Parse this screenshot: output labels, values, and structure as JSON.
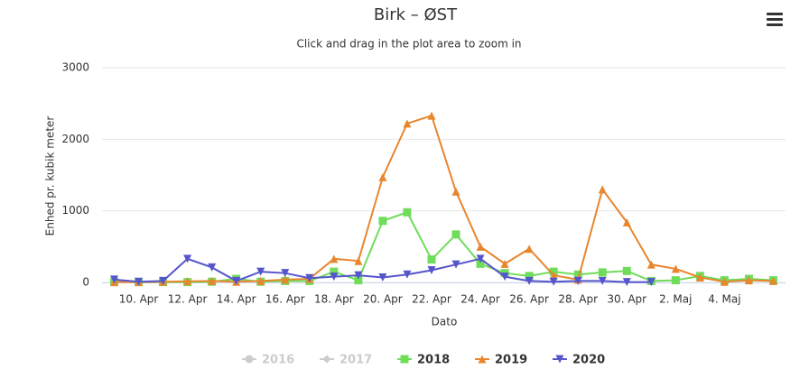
{
  "chart_data": {
    "type": "line",
    "title": "Birk – ØST",
    "subtitle": "Click and drag in the plot area to zoom in",
    "xlabel": "Dato",
    "ylabel": "Enhed pr. kubik meter",
    "categories": [
      null,
      "10. Apr",
      null,
      "12. Apr",
      null,
      "14. Apr",
      null,
      "16. Apr",
      null,
      "18. Apr",
      null,
      "20. Apr",
      null,
      "22. Apr",
      null,
      "24. Apr",
      null,
      "26. Apr",
      null,
      "28. Apr",
      null,
      "30. Apr",
      null,
      "2. Maj",
      null,
      "4. Maj",
      null,
      null
    ],
    "ylim": [
      0,
      3000
    ],
    "yticks": [
      0,
      1000,
      2000,
      3000
    ],
    "grid": true,
    "legend": "bottom",
    "series": [
      {
        "name": "2016",
        "color": "#cccccc",
        "marker": "circle",
        "visible": false,
        "values": [
          null,
          null,
          null,
          null,
          null,
          null,
          null,
          null,
          null,
          null,
          null,
          null,
          null,
          null,
          null,
          null,
          null,
          null,
          null,
          null,
          null,
          null,
          null,
          null,
          null,
          null,
          null,
          null
        ]
      },
      {
        "name": "2017",
        "color": "#cccccc",
        "marker": "diamond",
        "visible": false,
        "values": [
          null,
          null,
          null,
          null,
          null,
          null,
          null,
          null,
          null,
          null,
          null,
          null,
          null,
          null,
          null,
          null,
          null,
          null,
          null,
          null,
          null,
          null,
          null,
          null,
          null,
          null,
          null,
          null
        ]
      },
      {
        "name": "2018",
        "color": "#6fdc5a",
        "marker": "square",
        "visible": true,
        "values": [
          10,
          5,
          5,
          5,
          10,
          50,
          10,
          20,
          20,
          150,
          30,
          860,
          980,
          320,
          670,
          260,
          130,
          90,
          150,
          110,
          140,
          160,
          20,
          30,
          90,
          30,
          50,
          30
        ]
      },
      {
        "name": "2019",
        "color": "#e8862e",
        "marker": "triangle",
        "visible": true,
        "values": [
          5,
          5,
          10,
          15,
          20,
          10,
          20,
          40,
          50,
          330,
          300,
          1470,
          2220,
          2330,
          1270,
          500,
          260,
          470,
          100,
          40,
          1300,
          840,
          250,
          190,
          70,
          10,
          30,
          20
        ]
      },
      {
        "name": "2020",
        "color": "#5555cc",
        "marker": "triangle-down",
        "visible": true,
        "values": [
          40,
          10,
          20,
          330,
          210,
          20,
          150,
          130,
          60,
          80,
          100,
          70,
          110,
          170,
          250,
          330,
          80,
          20,
          10,
          20,
          20,
          5,
          5,
          null,
          null,
          null,
          null,
          null
        ]
      }
    ]
  }
}
